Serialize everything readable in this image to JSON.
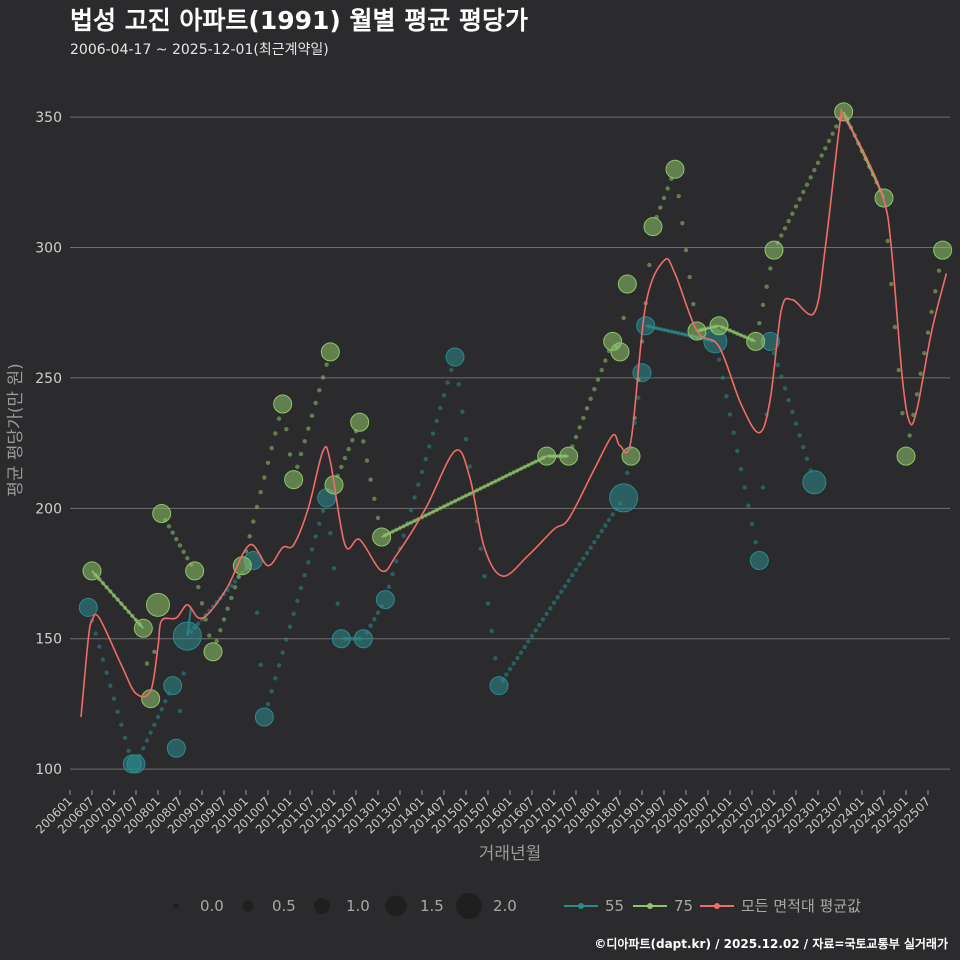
{
  "chart_data": {
    "type": "scatter",
    "title": "법성 고진 아파트(1991) 월별 평균 평당가",
    "subtitle": "2006-04-17 ~ 2025-12-01(최근계약일)",
    "xlabel": "거래년월",
    "ylabel": "평균 평당가(만 원)",
    "caption": "©디아파트(dapt.kr) / 2025.12.02 / 자료=국토교통부 실거래가",
    "ylim": [
      92,
      365
    ],
    "yticks": [
      100,
      150,
      200,
      250,
      300,
      350
    ],
    "x_start": "2006-01",
    "x_end": "2026-01",
    "xticks": [
      "200601",
      "200607",
      "200701",
      "200707",
      "200801",
      "200807",
      "200901",
      "200907",
      "201001",
      "201007",
      "201101",
      "201107",
      "201201",
      "201207",
      "201301",
      "201307",
      "201401",
      "201407",
      "201501",
      "201507",
      "201601",
      "201607",
      "201701",
      "201707",
      "201801",
      "201807",
      "201901",
      "201907",
      "202001",
      "202007",
      "202101",
      "202107",
      "202201",
      "202207",
      "202301",
      "202307",
      "202401",
      "202407",
      "202501",
      "202507"
    ],
    "size_legend": {
      "values": [
        "0.0",
        "0.5",
        "1.0",
        "1.5",
        "2.0"
      ]
    },
    "colors": {
      "s55": "#2b8a8e",
      "s75": "#8fc46a",
      "avg": "#f26b6b"
    },
    "series": [
      {
        "name": "55",
        "points": [
          {
            "x": "2006-06",
            "y": 162,
            "s": 1.0
          },
          {
            "x": "2007-06",
            "y": 102,
            "s": 1.0
          },
          {
            "x": "2007-07",
            "y": 102,
            "s": 1.0
          },
          {
            "x": "2008-05",
            "y": 132,
            "s": 1.0
          },
          {
            "x": "2008-06",
            "y": 108,
            "s": 1.0
          },
          {
            "x": "2008-09",
            "y": 151,
            "s": 2.0
          },
          {
            "x": "2010-03",
            "y": 180,
            "s": 1.0
          },
          {
            "x": "2010-06",
            "y": 120,
            "s": 1.0
          },
          {
            "x": "2011-11",
            "y": 204,
            "s": 1.0
          },
          {
            "x": "2012-03",
            "y": 150,
            "s": 1.0
          },
          {
            "x": "2012-09",
            "y": 150,
            "s": 1.0
          },
          {
            "x": "2013-03",
            "y": 165,
            "s": 1.0
          },
          {
            "x": "2014-10",
            "y": 258,
            "s": 1.0
          },
          {
            "x": "2015-10",
            "y": 132,
            "s": 1.0
          },
          {
            "x": "2018-08",
            "y": 204,
            "s": 2.0
          },
          {
            "x": "2019-01",
            "y": 252,
            "s": 1.0
          },
          {
            "x": "2019-02",
            "y": 270,
            "s": 1.0
          },
          {
            "x": "2020-09",
            "y": 264,
            "s": 1.5
          },
          {
            "x": "2021-09",
            "y": 180,
            "s": 1.0
          },
          {
            "x": "2021-12",
            "y": 264,
            "s": 1.0
          },
          {
            "x": "2022-12",
            "y": 210,
            "s": 1.5
          }
        ],
        "lines": [
          [
            "2008-09",
            "2008-10"
          ],
          [
            "2019-02",
            "2020-09"
          ]
        ]
      },
      {
        "name": "75",
        "points": [
          {
            "x": "2006-07",
            "y": 176,
            "s": 1.0
          },
          {
            "x": "2007-09",
            "y": 154,
            "s": 1.0
          },
          {
            "x": "2007-11",
            "y": 127,
            "s": 1.0
          },
          {
            "x": "2008-01",
            "y": 163,
            "s": 1.5
          },
          {
            "x": "2008-02",
            "y": 198,
            "s": 1.0
          },
          {
            "x": "2008-11",
            "y": 176,
            "s": 1.0
          },
          {
            "x": "2009-04",
            "y": 145,
            "s": 1.0
          },
          {
            "x": "2009-12",
            "y": 178,
            "s": 1.0
          },
          {
            "x": "2010-11",
            "y": 240,
            "s": 1.0
          },
          {
            "x": "2011-02",
            "y": 211,
            "s": 1.0
          },
          {
            "x": "2011-12",
            "y": 260,
            "s": 1.0
          },
          {
            "x": "2012-01",
            "y": 209,
            "s": 1.0
          },
          {
            "x": "2012-08",
            "y": 233,
            "s": 1.0
          },
          {
            "x": "2013-02",
            "y": 189,
            "s": 1.0
          },
          {
            "x": "2016-11",
            "y": 220,
            "s": 1.0
          },
          {
            "x": "2017-05",
            "y": 220,
            "s": 1.0
          },
          {
            "x": "2018-05",
            "y": 264,
            "s": 1.0
          },
          {
            "x": "2018-07",
            "y": 260,
            "s": 1.0
          },
          {
            "x": "2018-09",
            "y": 286,
            "s": 1.0
          },
          {
            "x": "2018-10",
            "y": 220,
            "s": 1.0
          },
          {
            "x": "2019-04",
            "y": 308,
            "s": 1.0
          },
          {
            "x": "2019-10",
            "y": 330,
            "s": 1.0
          },
          {
            "x": "2020-04",
            "y": 268,
            "s": 1.0
          },
          {
            "x": "2020-10",
            "y": 270,
            "s": 1.0
          },
          {
            "x": "2021-08",
            "y": 264,
            "s": 1.0
          },
          {
            "x": "2022-01",
            "y": 299,
            "s": 1.0
          },
          {
            "x": "2023-08",
            "y": 352,
            "s": 1.0
          },
          {
            "x": "2024-07",
            "y": 319,
            "s": 1.0
          },
          {
            "x": "2025-01",
            "y": 220,
            "s": 1.0
          },
          {
            "x": "2025-11",
            "y": 299,
            "s": 1.0
          }
        ],
        "lines": [
          [
            "2006-07",
            "2007-09"
          ],
          [
            "2013-02",
            "2016-11"
          ],
          [
            "2016-11",
            "2017-05"
          ],
          [
            "2020-04",
            "2020-10"
          ],
          [
            "2020-10",
            "2021-08"
          ],
          [
            "2023-08",
            "2024-07"
          ]
        ]
      }
    ],
    "average": {
      "name": "모든 면적대 평균값",
      "points": [
        {
          "x": "2006-04",
          "y": 120
        },
        {
          "x": "2006-06",
          "y": 150
        },
        {
          "x": "2006-07",
          "y": 157
        },
        {
          "x": "2006-09",
          "y": 158
        },
        {
          "x": "2007-03",
          "y": 140
        },
        {
          "x": "2007-07",
          "y": 129
        },
        {
          "x": "2007-11",
          "y": 130
        },
        {
          "x": "2008-01",
          "y": 147
        },
        {
          "x": "2008-02",
          "y": 157
        },
        {
          "x": "2008-06",
          "y": 158
        },
        {
          "x": "2008-09",
          "y": 163
        },
        {
          "x": "2008-12",
          "y": 158
        },
        {
          "x": "2009-03",
          "y": 160
        },
        {
          "x": "2009-08",
          "y": 170
        },
        {
          "x": "2010-02",
          "y": 186
        },
        {
          "x": "2010-07",
          "y": 178
        },
        {
          "x": "2010-11",
          "y": 185
        },
        {
          "x": "2011-02",
          "y": 186
        },
        {
          "x": "2011-06",
          "y": 200
        },
        {
          "x": "2011-10",
          "y": 222
        },
        {
          "x": "2011-12",
          "y": 218
        },
        {
          "x": "2012-04",
          "y": 186
        },
        {
          "x": "2012-08",
          "y": 188
        },
        {
          "x": "2013-02",
          "y": 176
        },
        {
          "x": "2013-06",
          "y": 182
        },
        {
          "x": "2014-02",
          "y": 200
        },
        {
          "x": "2014-10",
          "y": 222
        },
        {
          "x": "2015-02",
          "y": 212
        },
        {
          "x": "2015-06",
          "y": 185
        },
        {
          "x": "2015-11",
          "y": 174
        },
        {
          "x": "2016-06",
          "y": 182
        },
        {
          "x": "2017-01",
          "y": 192
        },
        {
          "x": "2017-05",
          "y": 196
        },
        {
          "x": "2017-12",
          "y": 215
        },
        {
          "x": "2018-05",
          "y": 228
        },
        {
          "x": "2018-07",
          "y": 224
        },
        {
          "x": "2018-10",
          "y": 226
        },
        {
          "x": "2019-02",
          "y": 278
        },
        {
          "x": "2019-07",
          "y": 295
        },
        {
          "x": "2019-10",
          "y": 290
        },
        {
          "x": "2020-04",
          "y": 268
        },
        {
          "x": "2020-10",
          "y": 262
        },
        {
          "x": "2021-04",
          "y": 240
        },
        {
          "x": "2021-09",
          "y": 229
        },
        {
          "x": "2021-12",
          "y": 242
        },
        {
          "x": "2022-03",
          "y": 276
        },
        {
          "x": "2022-06",
          "y": 280
        },
        {
          "x": "2022-12",
          "y": 275
        },
        {
          "x": "2023-03",
          "y": 300
        },
        {
          "x": "2023-07",
          "y": 348
        },
        {
          "x": "2023-08",
          "y": 350
        },
        {
          "x": "2024-02",
          "y": 335
        },
        {
          "x": "2024-07",
          "y": 318
        },
        {
          "x": "2024-09",
          "y": 300
        },
        {
          "x": "2024-12",
          "y": 250
        },
        {
          "x": "2025-02",
          "y": 233
        },
        {
          "x": "2025-04",
          "y": 238
        },
        {
          "x": "2025-08",
          "y": 268
        },
        {
          "x": "2025-12",
          "y": 290
        }
      ]
    },
    "legend": [
      {
        "key": "s55",
        "label": "55"
      },
      {
        "key": "s75",
        "label": "75"
      },
      {
        "key": "avg",
        "label": "모든 면적대 평균값"
      }
    ]
  }
}
